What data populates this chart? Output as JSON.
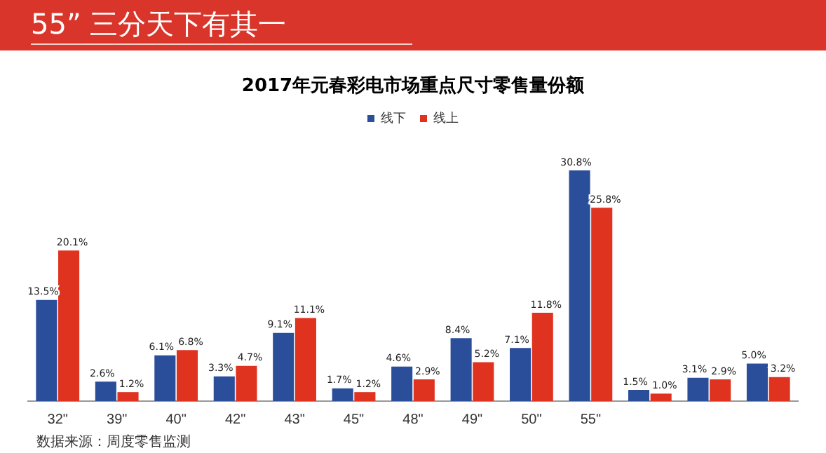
{
  "chart_data": {
    "type": "bar",
    "title": "55” 三分天下有其一",
    "subtitle": "2017年元春彩电市场重点尺寸零售量份额",
    "categories": [
      "32\"",
      "39\"",
      "40\"",
      "42\"",
      "43\"",
      "45\"",
      "48\"",
      "49\"",
      "50\"",
      "55\"",
      null,
      null,
      null
    ],
    "series": [
      {
        "name": "线下",
        "color": "#2b4e9b",
        "values": [
          13.5,
          2.6,
          6.1,
          3.3,
          9.1,
          1.7,
          4.6,
          8.4,
          7.1,
          30.8,
          1.5,
          3.1,
          5.0
        ],
        "value_labels": [
          "13.5%",
          "2.6%",
          "6.1%",
          "3.3%",
          "9.1%",
          "1.7%",
          "4.6%",
          "8.4%",
          "7.1%",
          "30.8%",
          "1.5%",
          "3.1%",
          "5.0%"
        ]
      },
      {
        "name": "线上",
        "color": "#df3320",
        "values": [
          20.1,
          1.2,
          6.8,
          4.7,
          11.1,
          1.2,
          2.9,
          5.2,
          11.8,
          25.8,
          1.0,
          2.9,
          3.2
        ],
        "value_labels": [
          "20.1%",
          "1.2%",
          "6.8%",
          "4.7%",
          "11.1%",
          "1.2%",
          "2.9%",
          "5.2%",
          "11.8%",
          "25.8%",
          "1.0%",
          "2.9%",
          "3.2%"
        ]
      }
    ],
    "legend": "top",
    "grid": false,
    "annotations": [
      "数据来源：周度零售监测"
    ]
  }
}
